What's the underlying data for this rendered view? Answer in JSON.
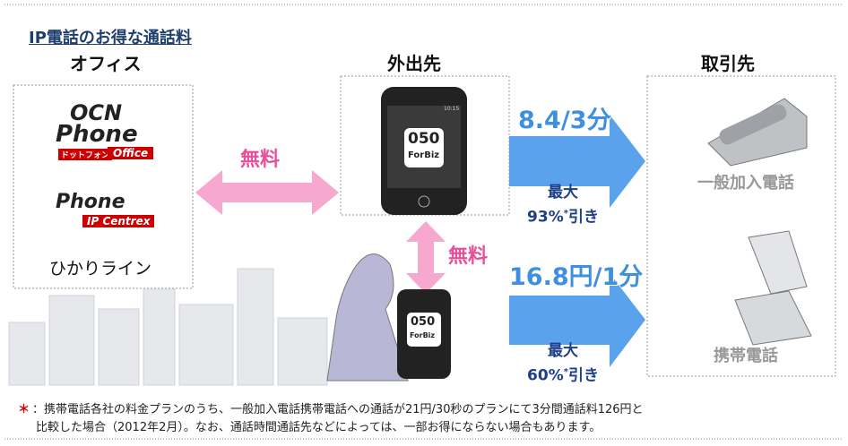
{
  "header": {
    "title": "IP電話のお得な通話料"
  },
  "columns": {
    "office": "オフィス",
    "mobile": "外出先",
    "client": "取引先"
  },
  "office": {
    "ocn_logo": {
      "line1": "OCN",
      "line2": "Phone",
      "tag1": "ドットフォン",
      "tag2": "Office"
    },
    "centrex_logo": {
      "line1": "Phone",
      "tag": "IP Centrex"
    },
    "hikari": "ひかりライン"
  },
  "free_labels": [
    "無料",
    "無料"
  ],
  "phone_app": {
    "number": "050",
    "name": "ForBiz",
    "clock": "10:15"
  },
  "rates": [
    {
      "price": "8.4/3分",
      "max": "最大",
      "discount": "93%",
      "mark": "*",
      "suffix": "引き",
      "target": "一般加入電話"
    },
    {
      "price": "16.8円/1分",
      "max": "最大",
      "discount": "60%",
      "mark": "*",
      "suffix": "引き",
      "target": "携帯電話"
    }
  ],
  "footnote": {
    "mark": "＊",
    "line1": "：携帯電話各社の料金プランのうち、一般加入電話携帯電話への通話が21円/30秒のプランにて3分間通話料126円と",
    "line2": "比較した場合（2012年2月）。なお、通話時間通話先などによっては、一部お得にならない場合もあります。"
  }
}
